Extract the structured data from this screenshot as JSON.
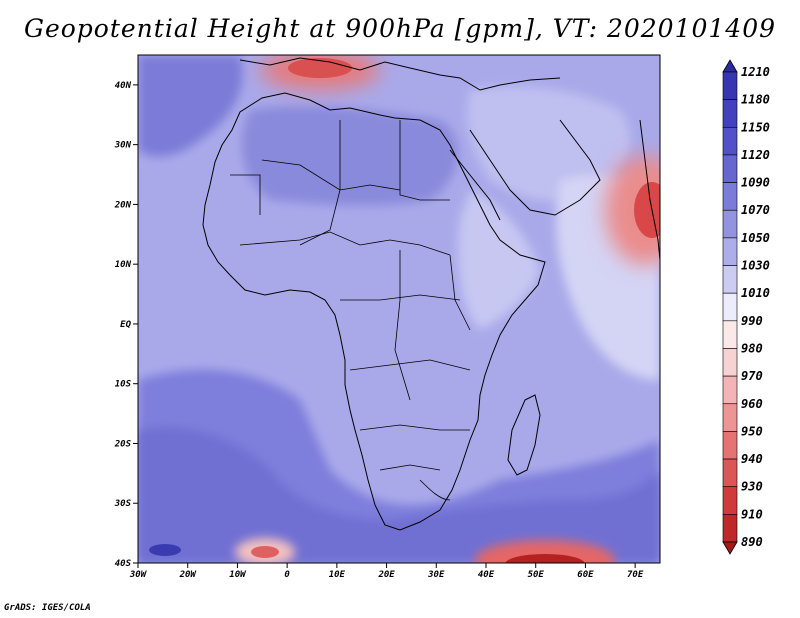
{
  "title": "Geopotential Height at 900hPa [gpm], VT: 2020101409",
  "footer": "GrADS: IGES/COLA",
  "map": {
    "lon_range": [
      -30,
      75
    ],
    "lat_range": [
      -40,
      45
    ],
    "lat_ticks": [
      {
        "value": 40,
        "label": "40N"
      },
      {
        "value": 30,
        "label": "30N"
      },
      {
        "value": 20,
        "label": "20N"
      },
      {
        "value": 10,
        "label": "10N"
      },
      {
        "value": 0,
        "label": "EQ"
      },
      {
        "value": -10,
        "label": "10S"
      },
      {
        "value": -20,
        "label": "20S"
      },
      {
        "value": -30,
        "label": "30S"
      },
      {
        "value": -40,
        "label": "40S"
      }
    ],
    "lon_ticks": [
      {
        "value": -30,
        "label": "30W"
      },
      {
        "value": -20,
        "label": "20W"
      },
      {
        "value": -10,
        "label": "10W"
      },
      {
        "value": 0,
        "label": "0"
      },
      {
        "value": 10,
        "label": "10E"
      },
      {
        "value": 20,
        "label": "20E"
      },
      {
        "value": 30,
        "label": "30E"
      },
      {
        "value": 40,
        "label": "40E"
      },
      {
        "value": 50,
        "label": "50E"
      },
      {
        "value": 60,
        "label": "60E"
      },
      {
        "value": 70,
        "label": "70E"
      }
    ]
  },
  "colorbar": {
    "levels": [
      "1210",
      "1180",
      "1150",
      "1120",
      "1090",
      "1070",
      "1050",
      "1030",
      "1010",
      "990",
      "980",
      "970",
      "960",
      "950",
      "940",
      "930",
      "910",
      "890"
    ],
    "colors": [
      "#2b2b9e",
      "#3636b0",
      "#4242be",
      "#5252c8",
      "#6767d0",
      "#7b7bd8",
      "#9393e0",
      "#adadea",
      "#ccccf2",
      "#ececfa",
      "#fbe9e9",
      "#f7d2d2",
      "#f2b4b4",
      "#eb9595",
      "#e47474",
      "#dc5656",
      "#d03a3a",
      "#be2828",
      "#a31818"
    ]
  },
  "regions": [
    {
      "name": "mediterranean-low",
      "lon": 8,
      "lat": 43,
      "value": 960
    },
    {
      "name": "arabian-sea-low",
      "lon": 73,
      "lat": 20,
      "value": 950
    },
    {
      "name": "south-atlantic-low",
      "lon": -3,
      "lat": -39,
      "value": 970
    },
    {
      "name": "south-indian-low",
      "lon": 50,
      "lat": -41,
      "value": 890
    }
  ]
}
